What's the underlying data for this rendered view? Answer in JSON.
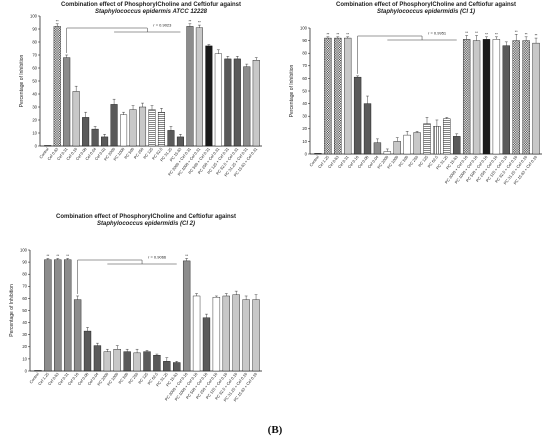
{
  "figure_label": "(B)",
  "chart_data": [
    {
      "type": "bar",
      "title": "Combination effect of PhosphorylCholine and Ceftiofur against",
      "subtitle": "Staphylococcus epidermis ATCC 12228",
      "xlabel": "",
      "ylabel": "Percentage of Inhibition",
      "ylim": [
        0,
        100
      ],
      "yticks": [
        0,
        10,
        20,
        30,
        40,
        50,
        60,
        70,
        80,
        90,
        100
      ],
      "correlation_label": "r = 0.9023",
      "categories": [
        "Control",
        "Cef 0.63",
        "Cef 0.31",
        "Cef 0.16",
        "Cef 0.08",
        "Cef 0.04",
        "Cef 0.02",
        "PC 2000",
        "PC 1000",
        "PC 500",
        "PC 250",
        "PC 125",
        "PC 62.5",
        "PC 31.25",
        "PC 15.63",
        "PC 2000 + Cef 0.31",
        "PC 1000 + Cef 0.31",
        "PC 500 + Cef 0.31",
        "PC 250 + Cef 0.31",
        "PC 125 + Cef 0.31",
        "PC 62.5 + Cef 0.31",
        "PC 31.25 + Cef 0.31",
        "PC 15.63 + Cef 0.31"
      ],
      "values": [
        0,
        92,
        68,
        42,
        22,
        13,
        7,
        32,
        24,
        28,
        30,
        28,
        26,
        12,
        7,
        92,
        91,
        77,
        71,
        67,
        67,
        61,
        66
      ],
      "errors": [
        0,
        2,
        2,
        4,
        4,
        2,
        2,
        4,
        2,
        3,
        3,
        3,
        3,
        3,
        2,
        2,
        2,
        1,
        3,
        2,
        2,
        2,
        2
      ],
      "significance": [
        "",
        "**",
        "",
        "",
        "",
        "",
        "",
        "",
        "",
        "",
        "",
        "",
        "",
        "",
        "",
        "**",
        "**",
        "",
        "",
        "",
        "",
        "",
        ""
      ],
      "fills": [
        "solid-gray",
        "check",
        "gray",
        "lightgray",
        "darkgray",
        "darkgray",
        "darkgray",
        "darkgray",
        "white",
        "lightgray",
        "lightgray",
        "hatch-h",
        "hatch-h",
        "darkgray",
        "darkgray",
        "gray",
        "lightgray",
        "black",
        "white",
        "darkgray",
        "darkgray",
        "gray",
        "lightgray"
      ]
    },
    {
      "type": "bar",
      "title": "Combination effect of PhosphorylCholine and Ceftiofur against",
      "subtitle": "Staphylococcus epidermidis (CI 1)",
      "xlabel": "",
      "ylabel": "Percentage of Inhibition",
      "ylim": [
        0,
        100
      ],
      "yticks": [
        0,
        10,
        20,
        30,
        40,
        50,
        60,
        70,
        80,
        90,
        100
      ],
      "correlation_label": "r = 0.9951",
      "categories": [
        "Control",
        "Cef 1.25",
        "Cef 0.63",
        "Cef 0.31",
        "Cef 0.16",
        "Cef 0.08",
        "Cef 0.04",
        "PC 2000",
        "PC 1000",
        "PC 500",
        "PC 250",
        "PC 125",
        "PC 62.5",
        "PC 31.25",
        "PC 15.63",
        "PC 2000 + Cef 0.16",
        "PC 1000 + Cef 0.16",
        "PC 500 + Cef 0.16",
        "PC 250 + Cef 0.16",
        "PC 125 + Cef 0.16",
        "PC 62.5 + Cef 0.16",
        "PC 31.25 + Cef 0.16",
        "PC 15.63 + Cef 0.16"
      ],
      "values": [
        0,
        92,
        92,
        92,
        61,
        40,
        9,
        2,
        10,
        15,
        17,
        24,
        22,
        28,
        14,
        91,
        90,
        91,
        91,
        86,
        90,
        90,
        88
      ],
      "errors": [
        0,
        1,
        1,
        1,
        1,
        6,
        3,
        2,
        3,
        3,
        1,
        5,
        5,
        1,
        2,
        3,
        4,
        2,
        2,
        3,
        5,
        3,
        4
      ],
      "significance": [
        "",
        "**",
        "**",
        "**",
        "",
        "",
        "",
        "",
        "",
        "",
        "",
        "",
        "",
        "",
        "",
        "**",
        "**",
        "**",
        "**",
        "",
        "**",
        "**",
        "**"
      ],
      "fills": [
        "black",
        "check",
        "check",
        "lightgray",
        "darkgray",
        "darkgray",
        "gray",
        "white",
        "lightgray",
        "white",
        "lightgray",
        "hatch-h",
        "hatch-v",
        "hatch-h",
        "darkgray",
        "check",
        "lightgray",
        "black",
        "white",
        "darkgray",
        "check",
        "check",
        "lightgray"
      ]
    },
    {
      "type": "bar",
      "title": "Combination effect of PhosphorylCholine and Ceftiofur against",
      "subtitle": "Staphylococcus epidermidis (CI 2)",
      "xlabel": "",
      "ylabel": "Percentage of Inhibition",
      "ylim": [
        0,
        100
      ],
      "yticks": [
        0,
        10,
        20,
        30,
        40,
        50,
        60,
        70,
        80,
        90,
        100
      ],
      "correlation_label": "r = 0.9066",
      "categories": [
        "Control",
        "Cef 1.25",
        "Cef 0.63",
        "Cef 0.31",
        "Cef 0.16",
        "Cef 0.08",
        "Cef 0.04",
        "PC 2000",
        "PC 1000",
        "PC 500",
        "PC 250",
        "PC 125",
        "PC 62.5",
        "PC 31.25",
        "PC 15.63",
        "PC 2000 + Cef 0.16",
        "PC 1000 + Cef 0.16",
        "PC 500 + Cef 0.16",
        "PC 250 + Cef 0.16",
        "PC 125 + Cef 0.16",
        "PC 62.5 + Cef 0.16",
        "PC 31.25 + Cef 0.16",
        "PC 15.63 + Cef 0.16"
      ],
      "values": [
        0,
        92,
        92,
        92,
        59,
        33,
        21,
        16,
        18,
        16,
        15,
        16,
        13,
        8,
        7,
        91,
        62,
        44,
        61,
        62,
        63,
        59,
        59
      ],
      "errors": [
        0,
        1,
        1,
        1,
        3,
        3,
        2,
        2,
        3,
        2,
        3,
        1,
        1,
        3,
        1,
        2,
        2,
        3,
        1,
        2,
        3,
        3,
        4
      ],
      "significance": [
        "",
        "**",
        "**",
        "**",
        "",
        "",
        "",
        "",
        "",
        "",
        "",
        "",
        "",
        "",
        "",
        "**",
        "",
        "",
        "",
        "",
        "",
        "",
        ""
      ],
      "fills": [
        "solid-gray",
        "gray",
        "gray",
        "gray",
        "gray",
        "darkgray",
        "darkgray",
        "lightgray",
        "lightgray",
        "darkgray",
        "lightgray",
        "darkgray",
        "darkgray",
        "darkgray",
        "darkgray",
        "gray",
        "white",
        "darkgray",
        "white",
        "lightgray",
        "lightgray",
        "lightgray",
        "lightgray"
      ]
    }
  ]
}
